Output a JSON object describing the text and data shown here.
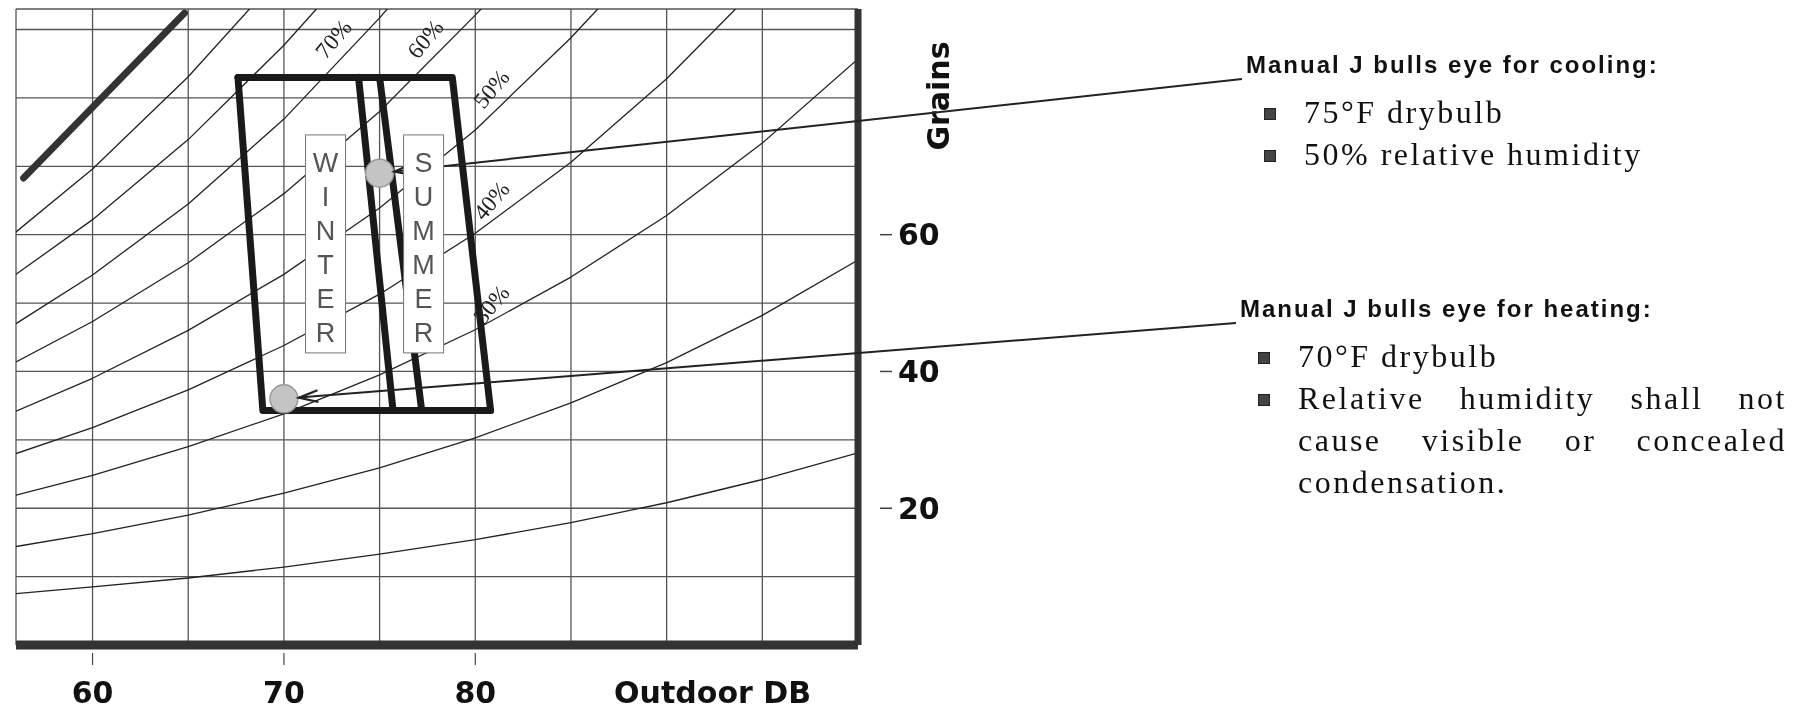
{
  "chart_data": {
    "type": "line",
    "xlabel": "Outdoor DB",
    "ylabel": "Grains",
    "xlim": [
      56,
      100
    ],
    "ylim": [
      0,
      93
    ],
    "xticks": [
      60,
      {
        "value": 65,
        "label": null
      },
      70,
      {
        "value": 75,
        "label": null
      },
      80,
      {
        "value": 85,
        "label": null
      },
      {
        "value": 90,
        "label": null
      },
      {
        "value": 95,
        "label": null
      }
    ],
    "yticks": [
      {
        "value": 10,
        "label": null
      },
      20,
      {
        "value": 30,
        "label": null
      },
      40,
      {
        "value": 50,
        "label": null
      },
      60,
      {
        "value": 70,
        "label": null
      },
      {
        "value": 80,
        "label": null
      },
      {
        "value": 90,
        "label": null
      }
    ],
    "grid": true,
    "series": [
      {
        "color": "#333333",
        "x": [
          56.4,
          64.8
        ],
        "values": [
          68.3,
          92.4
        ]
      },
      {
        "color": "#222222",
        "x": [
          56,
          60,
          65,
          68.2
        ],
        "values": [
          60.4,
          69.6,
          83.1,
          93
        ]
      },
      {
        "color": "#222222",
        "x": [
          56,
          60,
          65,
          70,
          71.7
        ],
        "values": [
          54.2,
          62.2,
          73.9,
          87.7,
          93
        ]
      },
      {
        "name": "70%",
        "color": "#222222",
        "x": [
          56,
          60,
          65,
          70,
          75,
          75.4
        ],
        "values": [
          47,
          54.1,
          64.5,
          76.9,
          91.7,
          93
        ]
      },
      {
        "name": "60%",
        "color": "#222222",
        "x": [
          56,
          60,
          65,
          70,
          75,
          80,
          80.3
        ],
        "values": [
          41.4,
          47.3,
          55.9,
          66.0,
          78.0,
          92.1,
          93
        ]
      },
      {
        "name": "50%",
        "color": "#222222",
        "x": [
          56,
          60,
          65,
          70,
          75,
          80,
          85,
          86.4
        ],
        "values": [
          34.2,
          39.0,
          46.0,
          54.2,
          63.9,
          75.3,
          88.8,
          93
        ]
      },
      {
        "name": "40%",
        "color": "#222222",
        "x": [
          56,
          60,
          65,
          70,
          75,
          80,
          85,
          90,
          93.6
        ],
        "values": [
          28,
          31.8,
          37.3,
          43.8,
          51.3,
          60.2,
          70.6,
          82.8,
          93
        ]
      },
      {
        "name": "30%",
        "color": "#222222",
        "x": [
          56,
          60,
          65,
          70,
          75,
          80,
          85,
          90,
          95,
          100
        ],
        "values": [
          21.9,
          24.8,
          29.0,
          33.8,
          39.5,
          46.1,
          53.8,
          62.8,
          73.4,
          85.7
        ]
      },
      {
        "color": "#222222",
        "x": [
          56,
          60,
          65,
          70,
          75,
          80,
          85,
          90,
          95,
          100
        ],
        "values": [
          14.4,
          16.3,
          19.0,
          22.2,
          25.9,
          30.3,
          35.4,
          41.3,
          48.2,
          56.3
        ]
      },
      {
        "color": "#222222",
        "x": [
          56,
          60,
          65,
          70,
          75,
          80,
          85,
          90,
          95,
          100
        ],
        "values": [
          7.5,
          8.5,
          9.8,
          11.4,
          13.3,
          15.4,
          17.9,
          20.8,
          24.2,
          28.1
        ]
      },
      {
        "color": "#1a1a1a",
        "x": [
          67.6,
          75.0,
          77.2
        ],
        "values": [
          83,
          83,
          34.3
        ]
      },
      {
        "color": "#1a1a1a",
        "x": [
          67.6,
          68.9,
          77.2
        ],
        "values": [
          83,
          34.3,
          34.3
        ]
      },
      {
        "color": "#1a1a1a",
        "x": [
          73.9,
          78.8,
          80.8
        ],
        "values": [
          83,
          83,
          34.3
        ]
      },
      {
        "color": "#1a1a1a",
        "x": [
          73.9,
          75.7,
          80.8
        ],
        "values": [
          83,
          34.3,
          34.3
        ]
      },
      {
        "type": "scatter",
        "color": "#c4c4c4",
        "x": [
          75,
          70
        ],
        "values": [
          69,
          36
        ]
      }
    ],
    "annotations": [
      "Manual J bulls eye for cooling:",
      "75°F drybulb",
      "50% relative humidity",
      "Manual J bulls eye for heating:",
      "70°F drybulb",
      "Relative humidity shall not cause visible or concealed condensation.",
      "WINTER",
      "SUMMER"
    ]
  }
}
